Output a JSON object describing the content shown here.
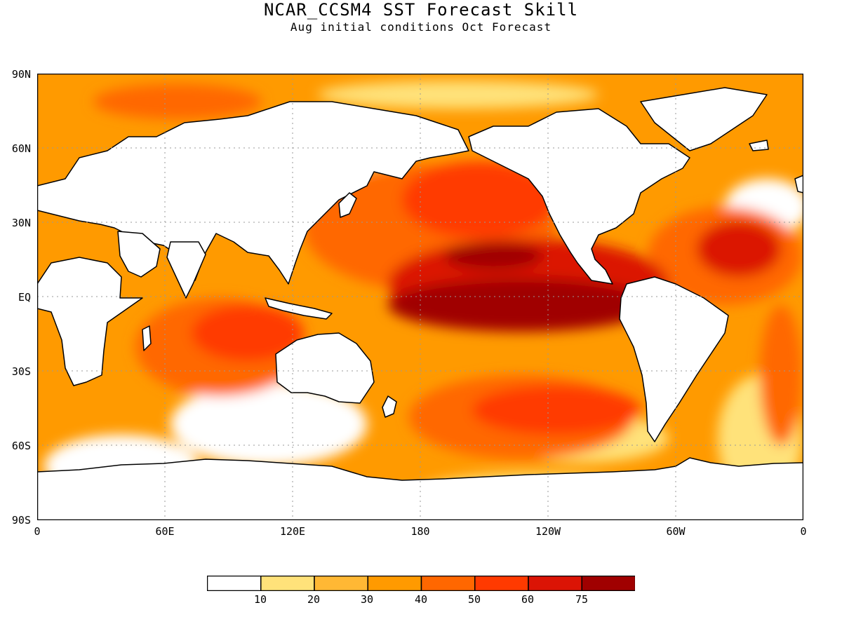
{
  "title": "NCAR_CCSM4 SST Forecast Skill",
  "subtitle": "Aug initial conditions  Oct Forecast",
  "lat_labels": [
    "90N",
    "60N",
    "30N",
    "EQ",
    "30S",
    "60S",
    "90S"
  ],
  "lon_labels": [
    "0",
    "60E",
    "120E",
    "180",
    "120W",
    "60W",
    "0"
  ],
  "legend": {
    "colors": [
      "#ffffff",
      "#ffe27a",
      "#ffb834",
      "#ff9a00",
      "#ff6700",
      "#ff3a00",
      "#db1405",
      "#a00000"
    ],
    "tick_labels": [
      "10",
      "20",
      "30",
      "40",
      "50",
      "60",
      "75"
    ]
  },
  "colors": {
    "land": "#ffffff",
    "coast": "#000000",
    "grid": "#999999"
  }
}
